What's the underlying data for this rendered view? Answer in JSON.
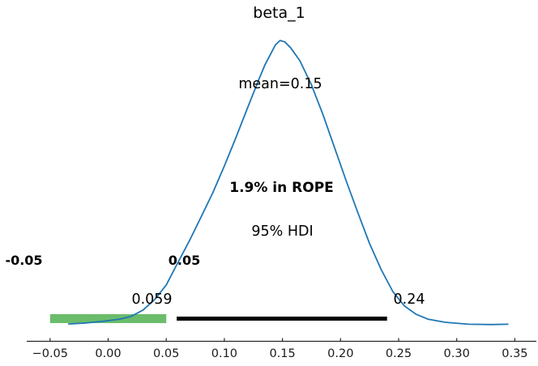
{
  "figure": {
    "title": "beta_1",
    "colors": {
      "curve_blue": "#1f77b4",
      "rope_green": "#2ca02c",
      "hdi_black": "#000000",
      "axis_gray": "#262626"
    }
  },
  "chart_data": {
    "type": "line",
    "subtype": "posterior-kde-density",
    "title": "beta_1",
    "xlabel": "",
    "ylabel": "",
    "grid": false,
    "legend_position": "none",
    "xlim": [
      -0.07,
      0.369
    ],
    "x_tick_values": [
      -0.05,
      0.0,
      0.05,
      0.1,
      0.15,
      0.2,
      0.25,
      0.3,
      0.35
    ],
    "x_tick_labels": [
      "−0.05",
      "0.00",
      "0.05",
      "0.10",
      "0.15",
      "0.20",
      "0.25",
      "0.30",
      "0.35"
    ],
    "mean_value": 0.15,
    "hdi_interval": [
      0.059,
      0.24
    ],
    "rope_interval": [
      -0.05,
      0.05
    ],
    "annotations": {
      "mean": "mean=0.15",
      "rope_percent": "1.9% in ROPE",
      "hdi": "95% HDI",
      "hdi_lower": "0.059",
      "hdi_upper": "0.24",
      "rope_lower": "-0.05",
      "rope_upper": "0.05"
    },
    "curve": {
      "x": [
        -0.034,
        -0.02,
        -0.005,
        0.01,
        0.02,
        0.03,
        0.04,
        0.05,
        0.059,
        0.07,
        0.08,
        0.09,
        0.1,
        0.11,
        0.12,
        0.13,
        0.135,
        0.14,
        0.144,
        0.148,
        0.152,
        0.157,
        0.165,
        0.175,
        0.185,
        0.195,
        0.205,
        0.215,
        0.225,
        0.235,
        0.245,
        0.255,
        0.265,
        0.275,
        0.29,
        0.31,
        0.33,
        0.344
      ],
      "density": [
        0.004,
        0.007,
        0.013,
        0.021,
        0.031,
        0.053,
        0.09,
        0.141,
        0.212,
        0.297,
        0.38,
        0.465,
        0.559,
        0.659,
        0.764,
        0.866,
        0.915,
        0.954,
        0.985,
        1.0,
        0.995,
        0.975,
        0.929,
        0.844,
        0.738,
        0.622,
        0.505,
        0.394,
        0.286,
        0.195,
        0.118,
        0.067,
        0.038,
        0.021,
        0.01,
        0.003,
        0.002,
        0.003
      ]
    }
  }
}
